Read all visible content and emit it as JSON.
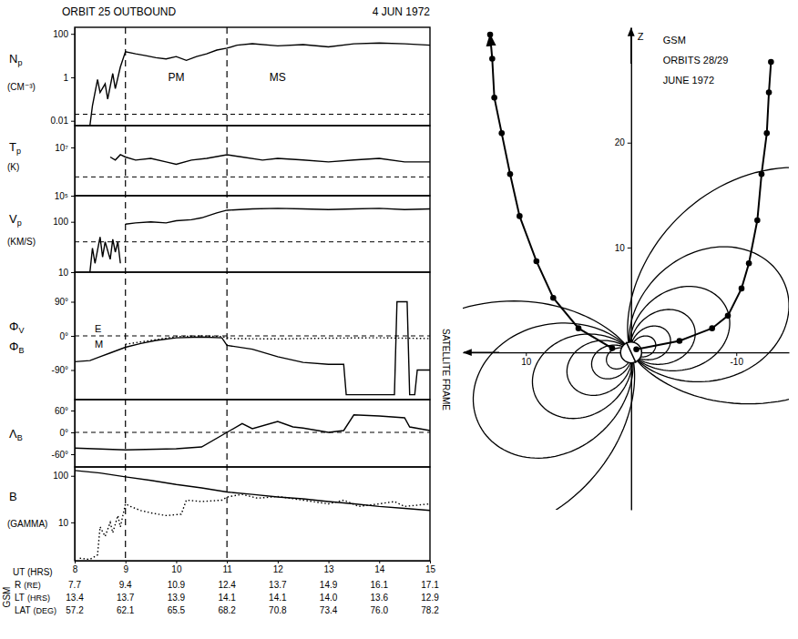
{
  "chart_data": [
    {
      "type": "panels",
      "title": "ORBIT 25 OUTBOUND",
      "subtitle": "4 JUN 1972",
      "xlabel": "UT (HRS)",
      "xlim": [
        8,
        15
      ],
      "xticks": [
        8,
        9,
        10,
        11,
        12,
        13,
        14,
        15
      ],
      "boundaries": [
        9,
        11
      ],
      "regions": [
        {
          "text": "PM",
          "x": 10
        },
        {
          "text": "MS",
          "x": 12
        }
      ],
      "side_label": "SATELLITE FRAME",
      "panels": [
        {
          "type": "line",
          "ylabel": "Np",
          "yunit": "(CM⁻³)",
          "log": "y",
          "ylim": [
            0.006,
            200
          ],
          "yticks": [
            100,
            1,
            0.01
          ],
          "reference": [
            0.02
          ],
          "series": [
            {
              "line_style": "solid",
              "x": [
                8.3,
                8.35,
                8.45,
                8.5,
                8.6,
                8.65,
                8.75,
                8.8,
                8.9,
                9.0,
                9.2,
                9.4,
                9.6,
                9.8,
                10.0,
                10.2,
                10.4,
                10.6,
                10.8,
                11.0,
                11.2,
                11.5,
                12.0,
                12.5,
                13.0,
                13.5,
                14.0,
                14.5,
                15.0
              ],
              "values": [
                0.006,
                0.05,
                0.8,
                0.2,
                0.5,
                0.1,
                1.5,
                0.3,
                3,
                15,
                12,
                10,
                8,
                7,
                9,
                6,
                9,
                12,
                18,
                22,
                30,
                35,
                28,
                32,
                25,
                35,
                38,
                35,
                30
              ]
            }
          ]
        },
        {
          "type": "line",
          "ylabel": "Tp",
          "yunit": "(K)",
          "log": "y",
          "ylim": [
            100000,
            80000000
          ],
          "yticks": [
            {
              "value": 10000000,
              "label": "10⁷"
            },
            {
              "value": 100000,
              "label": "10⁵"
            }
          ],
          "reference": [
            600000
          ],
          "series": [
            {
              "line_style": "solid",
              "x": [
                8.7,
                8.8,
                8.9,
                9.0,
                9.2,
                9.5,
                9.8,
                10.0,
                10.3,
                10.6,
                11.0,
                11.3,
                11.7,
                12.0,
                12.5,
                13.0,
                13.5,
                14.0,
                14.5,
                15.0
              ],
              "values": [
                4000000,
                3000000,
                5000000,
                4000000,
                3000000,
                3500000,
                2500000,
                2000000,
                3000000,
                3500000,
                5000000,
                4000000,
                3000000,
                3500000,
                3000000,
                2500000,
                3000000,
                3500000,
                2500000,
                2500000
              ]
            }
          ]
        },
        {
          "type": "line",
          "ylabel": "Vp",
          "yunit": "(KM/S)",
          "log": "y",
          "ylim": [
            10,
            330
          ],
          "yticks": [
            100,
            10
          ],
          "reference": [
            40
          ],
          "series": [
            {
              "line_style": "solid",
              "x": [
                8.3,
                8.35,
                8.4,
                8.5,
                8.55,
                8.6,
                8.7,
                8.75,
                8.8,
                8.85,
                8.9,
                8.95,
                9.0,
                9.2,
                9.5,
                9.8,
                10.0,
                10.3,
                10.5,
                10.8,
                11.0,
                11.5,
                12.0,
                12.5,
                13.0,
                13.5,
                14.0,
                14.5,
                15.0
              ],
              "values": [
                10,
                30,
                15,
                50,
                20,
                40,
                18,
                45,
                25,
                40,
                15,
                null,
                90,
                95,
                100,
                95,
                105,
                110,
                120,
                150,
                170,
                180,
                185,
                180,
                175,
                180,
                185,
                175,
                180
              ]
            }
          ]
        },
        {
          "type": "line",
          "ylabel": [
            "ΦV",
            "ΦB"
          ],
          "annotations": [
            "E",
            "M"
          ],
          "ylim": [
            -168,
            168
          ],
          "yticks": [
            {
              "value": 90,
              "label": "90°"
            },
            {
              "value": 0,
              "label": "0°"
            },
            {
              "value": -90,
              "label": "-90°"
            }
          ],
          "reference": [
            0
          ],
          "series": [
            {
              "line_style": "solid",
              "x": [
                8.0,
                8.3,
                8.5,
                8.7,
                9.0,
                9.3,
                9.6,
                10.0,
                10.5,
                10.9,
                11.0,
                11.5,
                12.0,
                12.5,
                13.0,
                13.3,
                13.35,
                14.3,
                14.35,
                14.55,
                14.6,
                14.7,
                14.75,
                15.0
              ],
              "values": [
                -68,
                -65,
                -55,
                -45,
                -30,
                -20,
                -12,
                -5,
                -3,
                -5,
                -25,
                -35,
                -55,
                -70,
                -75,
                -75,
                -155,
                -155,
                90,
                90,
                -155,
                -155,
                -90,
                -90
              ]
            },
            {
              "line_style": "dotted",
              "x": [
                9.0,
                9.5,
                10.0,
                10.5,
                10.9,
                11.0,
                11.1,
                12.0,
                13.0,
                14.0,
                15.0
              ],
              "values": [
                -22,
                -12,
                -2,
                0,
                -2,
                -5,
                -7,
                -8,
                -6,
                -5,
                -7
              ]
            }
          ]
        },
        {
          "type": "line",
          "ylabel": "ΛB",
          "ylim": [
            -95,
            90
          ],
          "yticks": [
            {
              "value": 60,
              "label": "60°"
            },
            {
              "value": 0,
              "label": "0°"
            },
            {
              "value": -60,
              "label": "-60°"
            }
          ],
          "reference": [
            0
          ],
          "series": [
            {
              "line_style": "solid",
              "x": [
                8.0,
                9.0,
                10.0,
                10.5,
                11.0,
                11.3,
                11.5,
                12.0,
                12.3,
                12.5,
                13.0,
                13.3,
                13.5,
                14.0,
                14.5,
                14.6,
                15.0
              ],
              "values": [
                -43,
                -48,
                -45,
                -40,
                0,
                24,
                10,
                30,
                15,
                12,
                0,
                5,
                48,
                45,
                40,
                15,
                5
              ]
            }
          ]
        },
        {
          "type": "line",
          "ylabel": "B",
          "yunit": "(GAMMA)",
          "log": "y",
          "ylim": [
            1.5,
            155
          ],
          "yticks": [
            100,
            10
          ],
          "series": [
            {
              "line_style": "solid",
              "x": [
                8,
                8.5,
                9,
                9.5,
                10,
                10.5,
                11,
                11.5,
                12,
                12.5,
                13,
                13.5,
                14,
                14.5,
                15
              ],
              "values": [
                130,
                115,
                95,
                80,
                65,
                55,
                45,
                40,
                35,
                32,
                28,
                25,
                22,
                20,
                18
              ]
            },
            {
              "line_style": "dotted",
              "x": [
                8.1,
                8.3,
                8.45,
                8.5,
                8.6,
                8.7,
                8.75,
                8.85,
                8.9,
                9.0,
                9.1,
                9.3,
                9.5,
                9.8,
                10.1,
                10.2,
                10.5,
                10.9,
                11.0,
                11.3,
                11.6,
                12.0,
                12.5,
                13.0,
                13.3,
                13.6,
                14.0,
                14.3,
                14.5,
                15.0
              ],
              "values": [
                1.7,
                1.6,
                2,
                8,
                5,
                10,
                6,
                14,
                8,
                25,
                22,
                18,
                16,
                14,
                15,
                30,
                28,
                30,
                35,
                40,
                33,
                36,
                30,
                25,
                30,
                22,
                25,
                28,
                22,
                25
              ]
            }
          ]
        }
      ],
      "table": {
        "title": "GSM",
        "rows": [
          {
            "label": "R",
            "unit": "(RE)",
            "values": [
              "7.7",
              "9.4",
              "10.9",
              "12.4",
              "13.7",
              "14.9",
              "16.1",
              "17.1"
            ]
          },
          {
            "label": "LT",
            "unit": "(HRS)",
            "values": [
              "13.4",
              "13.7",
              "13.9",
              "14.1",
              "14.1",
              "14.0",
              "13.6",
              "12.9"
            ]
          },
          {
            "label": "LAT",
            "unit": "(DEG)",
            "values": [
              "57.2",
              "62.1",
              "65.5",
              "68.2",
              "70.8",
              "73.4",
              "76.0",
              "78.2"
            ]
          }
        ]
      }
    },
    {
      "type": "orbit",
      "title": "GSM",
      "subtitle": [
        "ORBITS 28/29",
        "JUNE 1972"
      ],
      "ylabel": "Z",
      "xlim": [
        16,
        -15
      ],
      "ylim": [
        -15,
        31
      ],
      "xticks": [
        10,
        -10
      ],
      "yticks": [
        10,
        20
      ],
      "field_lines": [
        2.5,
        4,
        6.5,
        10,
        16,
        28
      ],
      "dipole_tilt": 25,
      "series": [
        {
          "line_style": "solid",
          "marker": "circle",
          "x": [
            1.8,
            5.0,
            7.4,
            9.0,
            10.6,
            11.5,
            12.3,
            13.0,
            13.2,
            13.4
          ],
          "values": [
            0.4,
            2.3,
            5.2,
            8.7,
            13.0,
            17.0,
            20.9,
            24.3,
            28.0,
            30.3
          ]
        },
        {
          "line_style": "solid",
          "marker": "circle",
          "x": [
            -0.5,
            -4.6,
            -7.7,
            -9.2,
            -10.5,
            -11.2,
            -12.0,
            -12.4,
            -12.9,
            -13.1,
            -13.3
          ],
          "values": [
            0.3,
            1.1,
            2.3,
            3.5,
            6.1,
            8.5,
            12.6,
            17.0,
            20.9,
            24.8,
            27.7
          ]
        }
      ]
    }
  ]
}
